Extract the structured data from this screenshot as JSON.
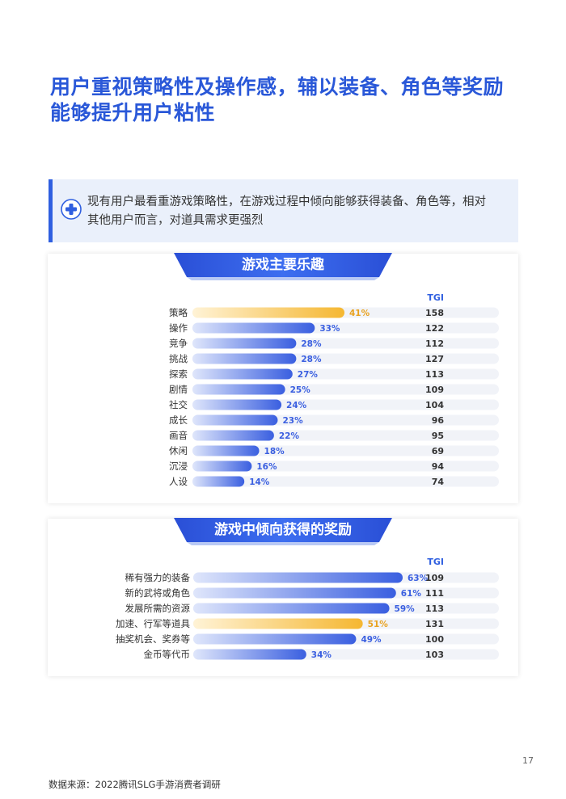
{
  "page": {
    "title_lines": [
      "用户重视策略性及操作感，辅以装备、角色等奖励",
      "能够提升用户粘性"
    ],
    "callout_lines": [
      "现有用户最看重游戏策略性，在游戏过程中倾向能够获得装备、角色等，相对",
      "其他用户而言，对道具需求更强烈"
    ],
    "callout_icon": "gamepad-plus-icon",
    "footer": "数据来源：2022腾讯SLG手游消费者调研",
    "page_number": "17"
  },
  "colors": {
    "accent": "#2f5fe0",
    "bar_blue_start": "#dfe6fb",
    "bar_blue_end": "#3a5fe0",
    "bar_gold_start": "#fff3d6",
    "bar_gold_end": "#f5b731",
    "track": "#f1f3f8"
  },
  "chart_data": [
    {
      "type": "bar",
      "orientation": "horizontal",
      "title": "游戏主要乐趣",
      "unit": "%",
      "tgi_header": "TGI",
      "categories": [
        "策略",
        "操作",
        "竞争",
        "挑战",
        "探索",
        "剧情",
        "社交",
        "成长",
        "画音",
        "休闲",
        "沉浸",
        "人设"
      ],
      "values": [
        41,
        33,
        28,
        28,
        27,
        25,
        24,
        23,
        22,
        18,
        16,
        14
      ],
      "tgi": [
        158,
        122,
        112,
        127,
        113,
        109,
        104,
        96,
        95,
        69,
        94,
        74
      ],
      "highlight_index": 0,
      "xlim": [
        0,
        70
      ]
    },
    {
      "type": "bar",
      "orientation": "horizontal",
      "title": "游戏中倾向获得的奖励",
      "unit": "%",
      "tgi_header": "TGI",
      "categories": [
        "稀有强力的装备",
        "新的武将或角色",
        "发展所需的资源",
        "加速、行军等道具",
        "抽奖机会、奖券等",
        "金币等代币"
      ],
      "values": [
        63,
        61,
        59,
        51,
        49,
        34
      ],
      "tgi": [
        109,
        111,
        113,
        131,
        100,
        103
      ],
      "highlight_index": 3,
      "xlim": [
        0,
        70
      ]
    }
  ]
}
